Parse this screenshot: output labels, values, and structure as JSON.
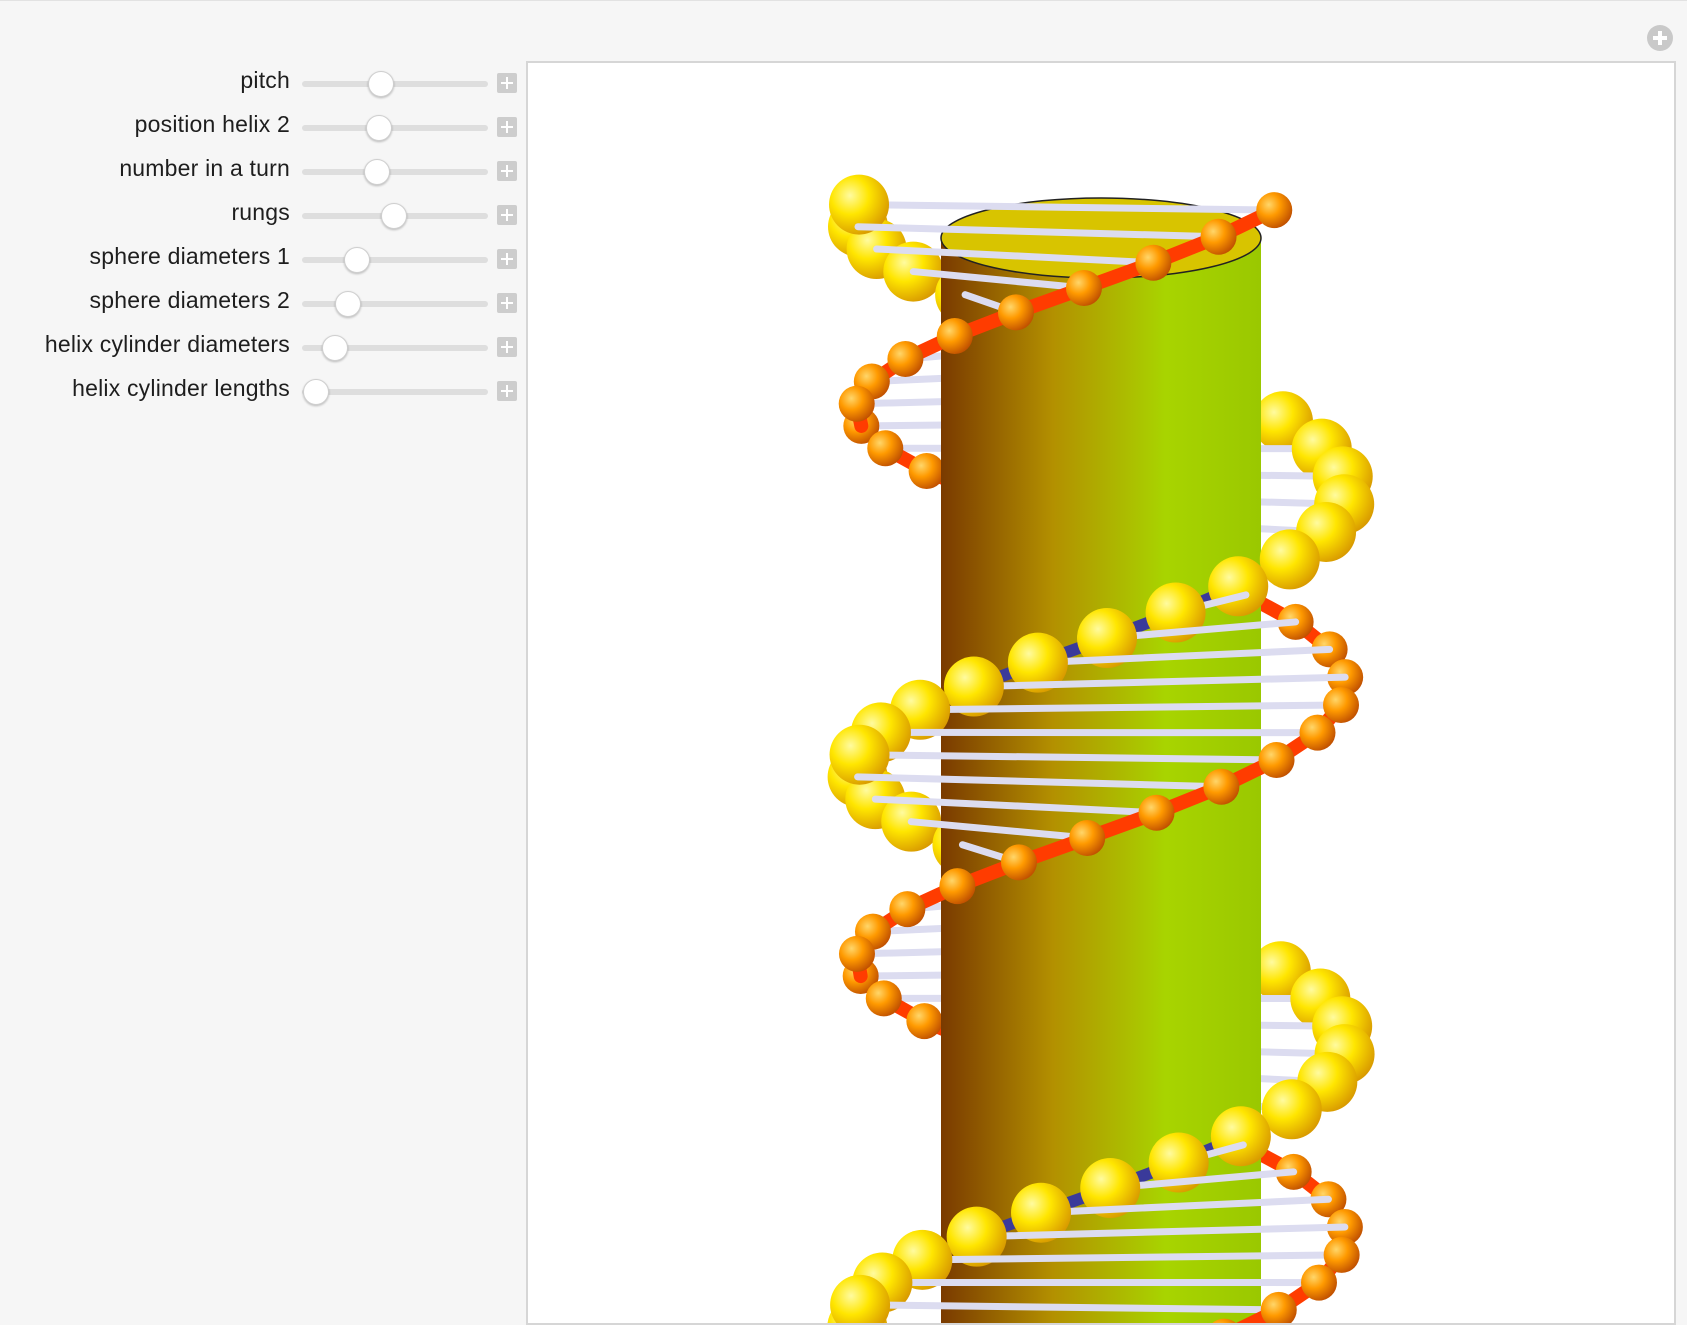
{
  "window": {
    "expand_button": "plus-circle-icon"
  },
  "controls": [
    {
      "label": "pitch",
      "value": 0.42
    },
    {
      "label": "position helix 2",
      "value": 0.41
    },
    {
      "label": "number in a turn",
      "value": 0.4
    },
    {
      "label": "rungs",
      "value": 0.49
    },
    {
      "label": "sphere diameters 1",
      "value": 0.29
    },
    {
      "label": "sphere diameters 2",
      "value": 0.24
    },
    {
      "label": "helix cylinder diameters",
      "value": 0.17
    },
    {
      "label": "helix cylinder lengths",
      "value": 0.07
    }
  ],
  "scene": {
    "description_colors": {
      "cylinder_dark": "#7a3a00",
      "cylinder_light": "#a8d400",
      "cylinder_top": "#d8c400",
      "helix1_sphere": "#ffe600",
      "helix1_link": "#3a3a9a",
      "helix2_sphere": "#ff9a00",
      "helix2_link": "#ff3c00",
      "rung": "#dcdcf0"
    }
  }
}
